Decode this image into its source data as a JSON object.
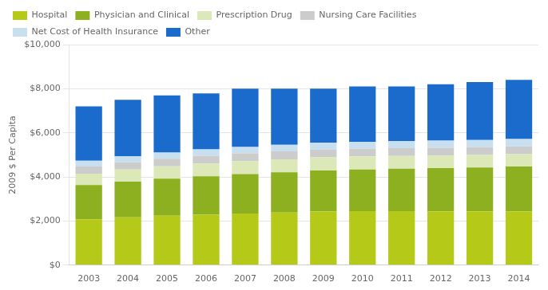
{
  "chart_data": {
    "type": "bar",
    "stacked": true,
    "grid": true,
    "legend": "top",
    "ylabel": "2009 $ Per Capita",
    "categories": [
      "2003",
      "2004",
      "2005",
      "2006",
      "2007",
      "2008",
      "2009",
      "2010",
      "2011",
      "2012",
      "2013",
      "2014"
    ],
    "series": [
      {
        "name": "Hospital",
        "color": "#b5c918",
        "values": [
          2080,
          2170,
          2240,
          2290,
          2340,
          2390,
          2430,
          2450,
          2450,
          2440,
          2440,
          2440
        ]
      },
      {
        "name": "Physician and Clinical",
        "color": "#8cb020",
        "values": [
          1550,
          1620,
          1680,
          1740,
          1790,
          1820,
          1860,
          1890,
          1920,
          1960,
          1990,
          2030
        ]
      },
      {
        "name": "Prescription Drug",
        "color": "#dce8b8",
        "values": [
          520,
          545,
          565,
          580,
          585,
          590,
          595,
          590,
          580,
          570,
          565,
          560
        ]
      },
      {
        "name": "Nursing Care Facilities",
        "color": "#cccccc",
        "values": [
          320,
          330,
          340,
          345,
          350,
          355,
          355,
          355,
          355,
          355,
          355,
          355
        ]
      },
      {
        "name": "Net Cost of Health Insurance",
        "color": "#c8dff0",
        "values": [
          260,
          270,
          280,
          290,
          295,
          305,
          310,
          310,
          315,
          320,
          325,
          330
        ]
      },
      {
        "name": "Other",
        "color": "#1a6bcc",
        "values": [
          2470,
          2565,
          2595,
          2545,
          2640,
          2540,
          2450,
          2505,
          2480,
          2555,
          2625,
          2685
        ]
      }
    ],
    "ylim": [
      0,
      10000
    ],
    "yticks": [
      {
        "value": 0,
        "label": "$0"
      },
      {
        "value": 2000,
        "label": "$2,000"
      },
      {
        "value": 4000,
        "label": "$4,000"
      },
      {
        "value": 6000,
        "label": "$6,000"
      },
      {
        "value": 8000,
        "label": "$8,000"
      },
      {
        "value": 10000,
        "label": "$10,000"
      }
    ]
  }
}
